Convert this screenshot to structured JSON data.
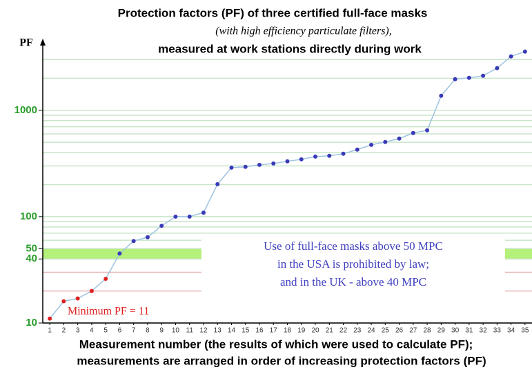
{
  "chart_data": {
    "type": "line",
    "title": "Protection factors (PF) of three certified full-face masks",
    "subtitle": "(with high efficiency particulate filters),",
    "subtitle2": "measured at work stations directly during work",
    "ylabel": "PF",
    "xlabel": "Measurement number (the results of which were used to calculate PF);",
    "xlabel2": "measurements are arranged in order of increasing protection factors (PF)",
    "annotation_lines": [
      "Use of full-face masks above 50 MPC",
      "in the USA is prohibited by law;",
      "and in the UK - above 40 MPC"
    ],
    "min_label": "Minimum PF = 11",
    "categories": [
      "1",
      "2",
      "3",
      "4",
      "5",
      "6",
      "7",
      "8",
      "9",
      "10",
      "11",
      "12",
      "13",
      "14",
      "15",
      "16",
      "17",
      "18",
      "19",
      "20",
      "21",
      "22",
      "23",
      "24",
      "25",
      "26",
      "27",
      "28",
      "29",
      "30",
      "31",
      "32",
      "33",
      "34",
      "35"
    ],
    "values": [
      11,
      16,
      17,
      20,
      26,
      45,
      59,
      64,
      82,
      100,
      100,
      109,
      202,
      289,
      294,
      307,
      316,
      331,
      346,
      367,
      373,
      390,
      427,
      473,
      503,
      542,
      611,
      648,
      1368,
      1960,
      2018,
      2113,
      2490,
      3210,
      3565
    ],
    "marker_colors": [
      "#e02020",
      "#e02020",
      "#e02020",
      "#e02020",
      "#e02020",
      "#3a3ab8",
      "#3a3ab8",
      "#3a3ab8",
      "#3a3ab8",
      "#3a3ab8",
      "#3a3ab8",
      "#3a3ab8",
      "#3a3ab8",
      "#3a3ab8",
      "#3a3ab8",
      "#3a3ab8",
      "#3a3ab8",
      "#3a3ab8",
      "#3a3ab8",
      "#3a3ab8",
      "#3a3ab8",
      "#3a3ab8",
      "#3a3ab8",
      "#3a3ab8",
      "#3a3ab8",
      "#3a3ab8",
      "#3a3ab8",
      "#3a3ab8",
      "#3a3ab8",
      "#3a3ab8",
      "#3a3ab8",
      "#3a3ab8",
      "#3a3ab8",
      "#3a3ab8",
      "#3a3ab8"
    ],
    "line_color": "#9ec4e0",
    "ylim": [
      10,
      4000
    ],
    "log_y": true,
    "yticks": [
      10,
      40,
      50,
      100,
      1000
    ],
    "grid_lines": [
      20,
      30,
      60,
      70,
      80,
      90,
      200,
      300,
      400,
      500,
      600,
      700,
      800,
      900,
      2000,
      3000
    ],
    "highlight_band": [
      40,
      50
    ],
    "band_color": "#b4f07a"
  }
}
